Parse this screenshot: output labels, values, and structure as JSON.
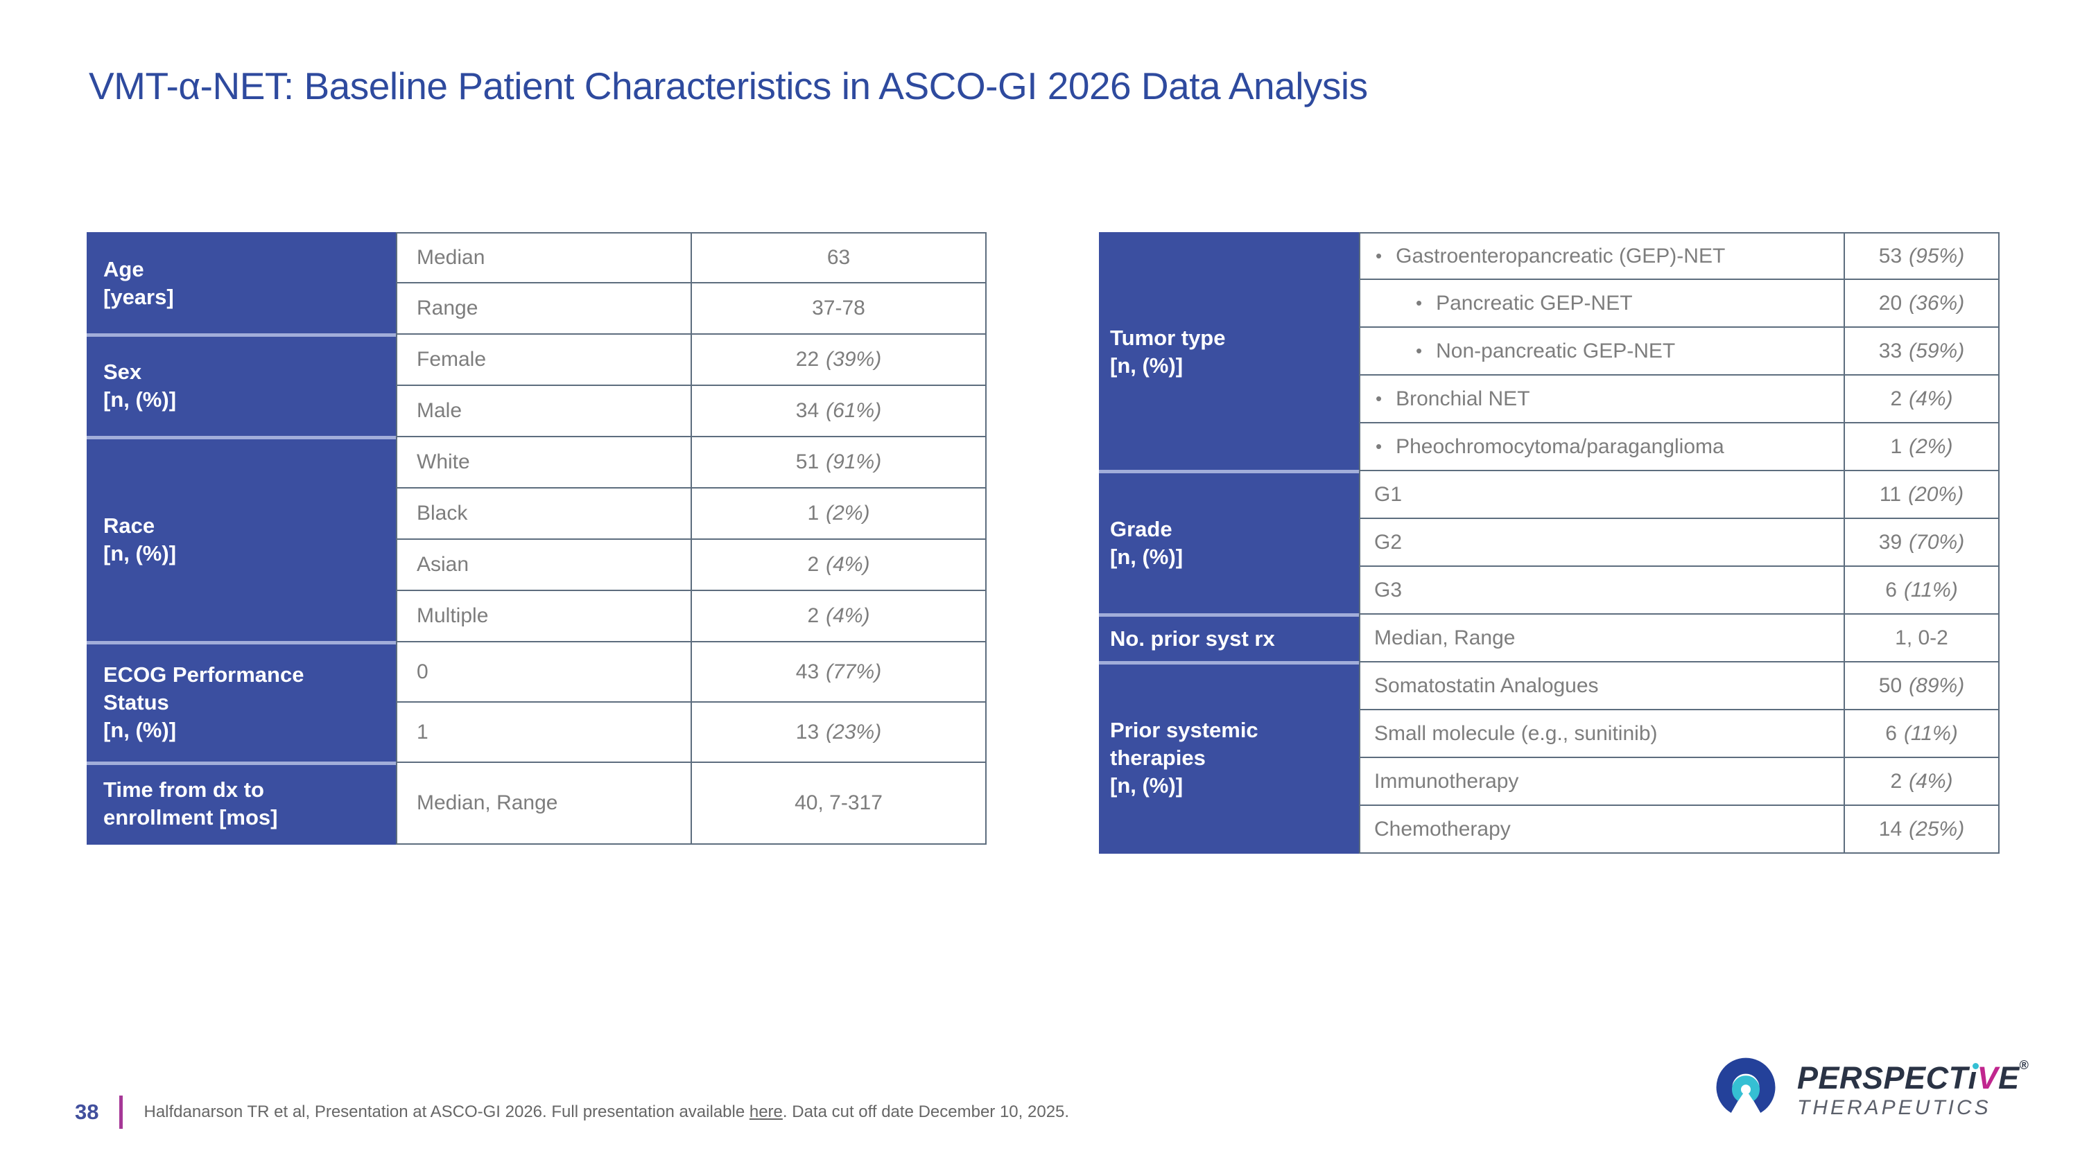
{
  "title": "VMT-α-NET: Baseline Patient Characteristics in ASCO-GI 2026 Data Analysis",
  "bullet_char": "•",
  "left_table": {
    "groups": [
      {
        "label": "Age\n[years]",
        "rows": [
          {
            "item": "Median",
            "indent": 0,
            "n": "63",
            "pct": ""
          },
          {
            "item": "Range",
            "indent": 0,
            "n": "37-78",
            "pct": ""
          }
        ]
      },
      {
        "label": "Sex\n[n, (%)]",
        "rows": [
          {
            "item": "Female",
            "indent": 0,
            "n": "22",
            "pct": "(39%)"
          },
          {
            "item": "Male",
            "indent": 0,
            "n": "34",
            "pct": "(61%)"
          }
        ]
      },
      {
        "label": "Race\n[n, (%)]",
        "rows": [
          {
            "item": "White",
            "indent": 0,
            "n": "51",
            "pct": "(91%)"
          },
          {
            "item": "Black",
            "indent": 0,
            "n": "1",
            "pct": "(2%)"
          },
          {
            "item": "Asian",
            "indent": 0,
            "n": "2",
            "pct": "(4%)"
          },
          {
            "item": "Multiple",
            "indent": 0,
            "n": "2",
            "pct": "(4%)"
          }
        ]
      },
      {
        "label": "ECOG Performance\nStatus\n[n, (%)]",
        "rows": [
          {
            "item": "0",
            "indent": 0,
            "n": "43",
            "pct": "(77%)"
          },
          {
            "item": "1",
            "indent": 0,
            "n": "13",
            "pct": "(23%)"
          }
        ]
      },
      {
        "label": "Time from dx to\nenrollment [mos]",
        "rows": [
          {
            "item": "Median, Range",
            "indent": 0,
            "n": "40, 7-317",
            "pct": ""
          }
        ]
      }
    ]
  },
  "right_table": {
    "groups": [
      {
        "label": "Tumor type\n[n, (%)]",
        "rows": [
          {
            "item": "Gastroenteropancreatic (GEP)-NET",
            "indent": 1,
            "n": "53",
            "pct": "(95%)"
          },
          {
            "item": "Pancreatic GEP-NET",
            "indent": 2,
            "n": "20",
            "pct": "(36%)"
          },
          {
            "item": "Non-pancreatic GEP-NET",
            "indent": 2,
            "n": "33",
            "pct": "(59%)"
          },
          {
            "item": "Bronchial NET",
            "indent": 1,
            "n": "2",
            "pct": "(4%)"
          },
          {
            "item": "Pheochromocytoma/paraganglioma",
            "indent": 1,
            "n": "1",
            "pct": "(2%)"
          }
        ]
      },
      {
        "label": "Grade\n[n, (%)]",
        "rows": [
          {
            "item": "G1",
            "indent": 0,
            "n": "11",
            "pct": "(20%)"
          },
          {
            "item": "G2",
            "indent": 0,
            "n": "39",
            "pct": "(70%)"
          },
          {
            "item": "G3",
            "indent": 0,
            "n": "6",
            "pct": "(11%)"
          }
        ]
      },
      {
        "label": "No. prior syst rx",
        "rows": [
          {
            "item": "Median, Range",
            "indent": 0,
            "n": "1, 0-2",
            "pct": ""
          }
        ]
      },
      {
        "label": "Prior systemic\ntherapies\n[n, (%)]",
        "rows": [
          {
            "item": "Somatostatin Analogues",
            "indent": 0,
            "n": "50",
            "pct": "(89%)"
          },
          {
            "item": "Small molecule (e.g., sunitinib)",
            "indent": 0,
            "n": "6",
            "pct": "(11%)"
          },
          {
            "item": "Immunotherapy",
            "indent": 0,
            "n": "2",
            "pct": "(4%)"
          },
          {
            "item": "Chemotherapy",
            "indent": 0,
            "n": "14",
            "pct": "(25%)"
          }
        ]
      }
    ]
  },
  "footer": {
    "page_number": "38",
    "citation_prefix": "Halfdanarson TR et al, Presentation at ASCO-GI 2026. Full presentation available ",
    "citation_link": "here",
    "citation_suffix": ". Data cut off date December 10, 2025."
  },
  "logo": {
    "name_part1": "PERSPECT",
    "name_i": "ı",
    "name_v": "V",
    "name_e": "E",
    "registered": "®",
    "subtitle": "THERAPEUTICS"
  },
  "colors": {
    "title_blue": "#2E4A9E",
    "header_blue": "#3B4FA0",
    "group_separator": "#A2AEDA",
    "cell_border": "#5D6D7E",
    "body_text_gray": "#7D7D7D",
    "footer_divider_magenta": "#A63897",
    "page_number_blue": "#414F9D",
    "logo_navy": "#2A3345",
    "logo_magenta": "#C0268E",
    "logo_teal": "#35BFD3",
    "logo_arc_blue": "#24419A"
  }
}
